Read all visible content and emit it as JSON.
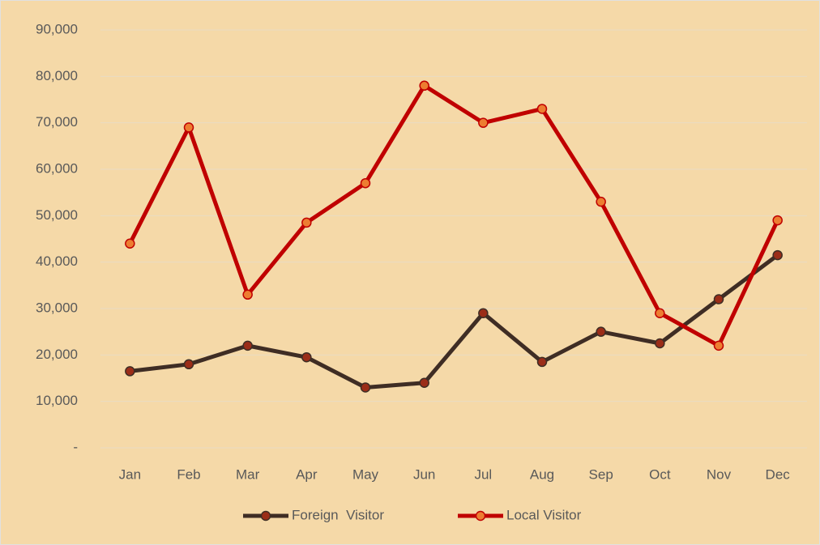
{
  "chart_data": {
    "type": "line",
    "categories": [
      "Jan",
      "Feb",
      "Mar",
      "Apr",
      "May",
      "Jun",
      "Jul",
      "Aug",
      "Sep",
      "Oct",
      "Nov",
      "Dec"
    ],
    "series": [
      {
        "name": "Foreign  Visitor",
        "color": "#3f2d24",
        "marker_color": "#9b2d18",
        "values": [
          16500,
          18000,
          22000,
          19500,
          13000,
          14000,
          29000,
          18500,
          25000,
          22500,
          32000,
          41500
        ]
      },
      {
        "name": "Local Visitor",
        "color": "#c00000",
        "marker_color": "#ed7d31",
        "values": [
          44000,
          69000,
          33000,
          48500,
          57000,
          78000,
          70000,
          73000,
          53000,
          29000,
          22000,
          49000
        ]
      }
    ],
    "ylim": [
      0,
      90000
    ],
    "yticks": [
      {
        "value": 0,
        "label": "-"
      },
      {
        "value": 10000,
        "label": "10,000"
      },
      {
        "value": 20000,
        "label": "20,000"
      },
      {
        "value": 30000,
        "label": "30,000"
      },
      {
        "value": 40000,
        "label": "40,000"
      },
      {
        "value": 50000,
        "label": "50,000"
      },
      {
        "value": 60000,
        "label": "60,000"
      },
      {
        "value": 70000,
        "label": "70,000"
      },
      {
        "value": 80000,
        "label": "80,000"
      },
      {
        "value": 90000,
        "label": "90,000"
      }
    ],
    "grid": true,
    "legend": "bottom"
  }
}
